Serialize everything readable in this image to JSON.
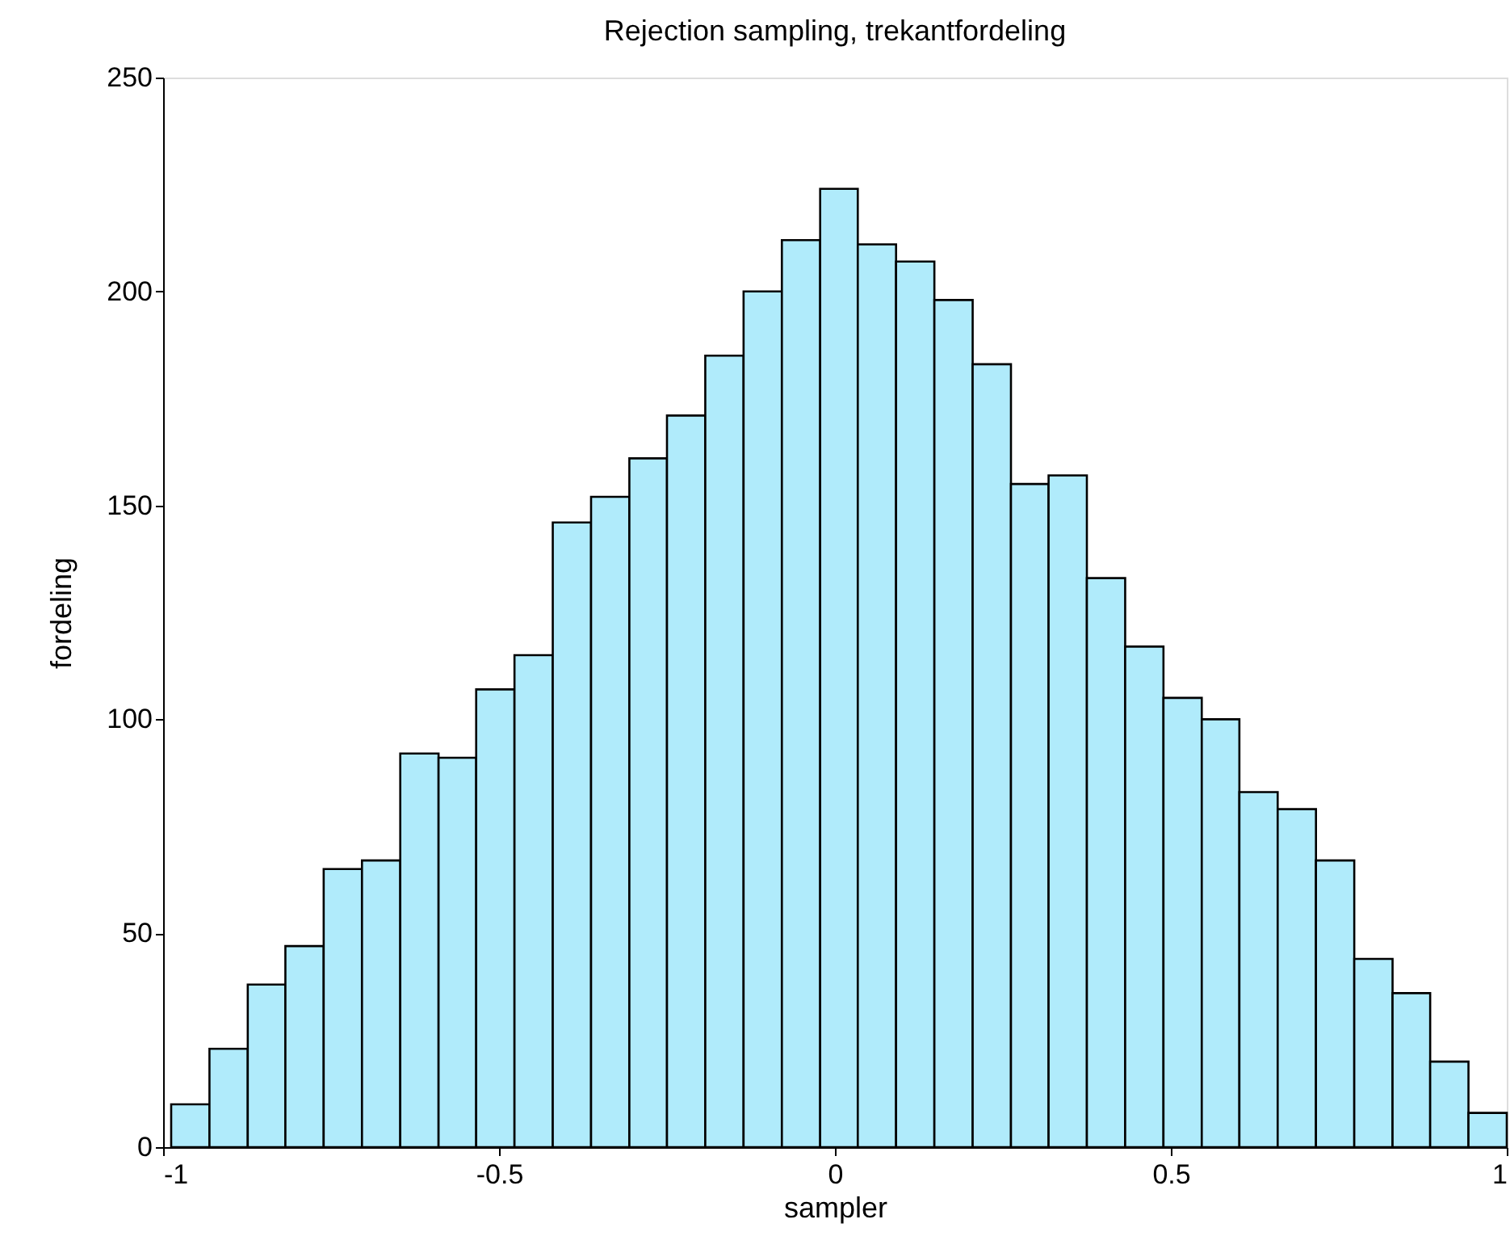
{
  "chart_data": {
    "type": "histogram",
    "title": "Rejection sampling, trekantfordeling",
    "xlabel": "sampler",
    "ylabel": "fordeling",
    "bins": [
      -0.988,
      -0.931,
      -0.874,
      -0.818,
      -0.761,
      -0.704,
      -0.647,
      -0.59,
      -0.534,
      -0.477,
      -0.42,
      -0.363,
      -0.306,
      -0.25,
      -0.193,
      -0.136,
      -0.079,
      -0.022,
      0.034,
      0.091,
      0.148,
      0.205,
      0.262,
      0.318,
      0.375,
      0.432,
      0.489,
      0.546,
      0.602,
      0.659,
      0.716,
      0.773,
      0.83,
      0.886,
      0.943,
      1.0
    ],
    "values": [
      10,
      23,
      38,
      47,
      65,
      67,
      92,
      91,
      107,
      115,
      146,
      152,
      161,
      171,
      185,
      200,
      212,
      224,
      211,
      207,
      198,
      183,
      155,
      157,
      133,
      117,
      105,
      100,
      83,
      79,
      67,
      44,
      36,
      20,
      8
    ],
    "color": "#b0ebfb",
    "xlim": [
      -1,
      1
    ],
    "xticks": [
      -1,
      -0.5,
      0,
      0.5,
      1
    ],
    "ylim": [
      0,
      250
    ],
    "yticks": [
      0,
      50,
      100,
      150,
      200,
      250
    ],
    "grid": false
  }
}
